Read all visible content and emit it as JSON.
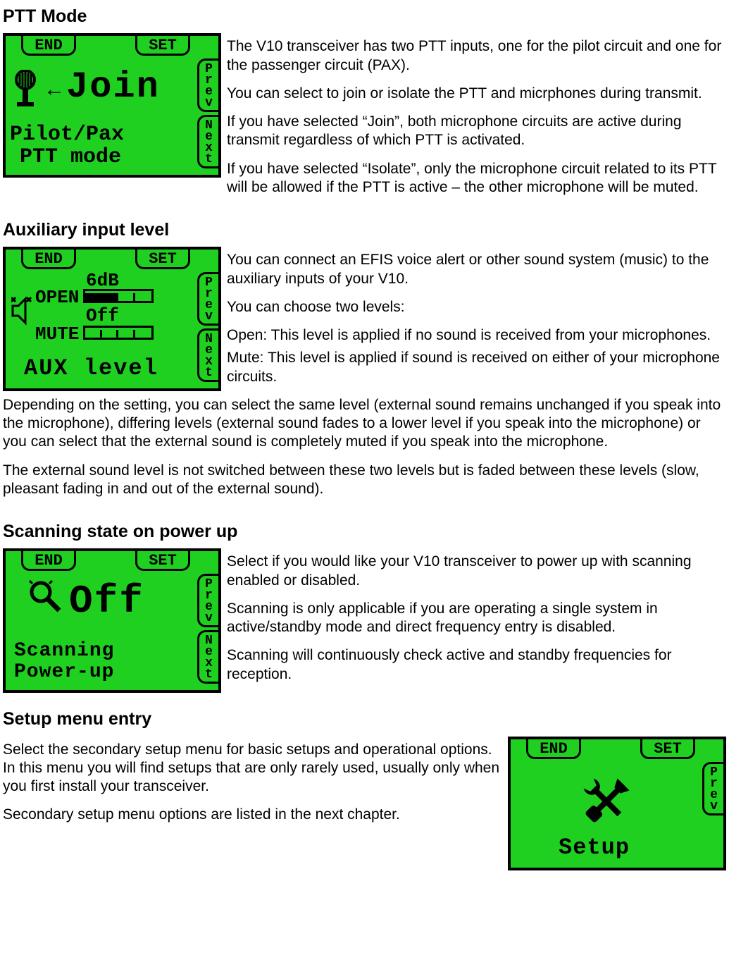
{
  "lcd": {
    "bg_color": "#20d020",
    "border_color": "#000000",
    "tabs": {
      "end": "END",
      "set": "SET",
      "prev": "Prev",
      "next": "Next"
    }
  },
  "ptt": {
    "heading": "PTT Mode",
    "screen": {
      "value": "Join",
      "line1": "Pilot/Pax",
      "line2": "PTT mode",
      "arrow": "←",
      "icon": "microphone-icon"
    },
    "p1": "The V10 transceiver has two PTT inputs, one for the pilot circuit and one for the passenger circuit (PAX).",
    "p2": "You can select to join or isolate the PTT and micrphones during transmit.",
    "p3": "If you have selected “Join”, both microphone circuits are active during transmit regardless of which PTT is activated.",
    "p4": "If you have selected “Isolate”, only the microphone circuit related to its PTT will be allowed if the PTT is active – the other microphone will be muted."
  },
  "aux": {
    "heading": "Auxiliary input level",
    "screen": {
      "db": "6dB",
      "open_label": "OPEN",
      "off_label": "Off",
      "mute_label": "MUTE",
      "title": "AUX level",
      "icon": "horn-icon",
      "open_bar": {
        "cells": 4,
        "filled": 2
      },
      "mute_bar": {
        "cells": 4,
        "filled": 0
      }
    },
    "p1": "You can connect an EFIS voice alert or other sound system (music) to the auxiliary inputs of your V10.",
    "p2": "You can choose two levels:",
    "p3": "Open: This level is applied if no sound is received from your microphones.",
    "p4": "Mute: This level is applied if sound is received on either of your microphone circuits.",
    "p5": "Depending on the setting, you can select the same level (external sound remains unchanged if you speak into the microphone), differing levels (external sound fades to a lower level if you speak into the microphone) or you can select that the external sound is completely muted if you speak into the microphone.",
    "p6": "The external sound level is not switched between these two levels but is faded between these levels (slow, pleasant fading in and out of the external sound)."
  },
  "scan": {
    "heading": "Scanning state on power up",
    "screen": {
      "value": "Off",
      "line1": "Scanning",
      "line2": "Power-up",
      "icon": "magnifier-icon"
    },
    "p1": "Select if you would like your V10 transceiver to power up with scanning enabled or disabled.",
    "p2": "Scanning is only applicable if you are operating a single system in active/standby mode and direct frequency entry is disabled.",
    "p3": "Scanning will continuously check active and standby frequencies for reception."
  },
  "setup": {
    "heading": "Setup menu entry",
    "screen": {
      "label": "Setup",
      "icon": "tools-icon"
    },
    "p1": "Select the secondary setup menu for basic setups and operational options. In this menu you will find setups that are only rarely used, usually only when you first install your transceiver.",
    "p2": "Secondary setup menu options are listed in the next chapter."
  }
}
